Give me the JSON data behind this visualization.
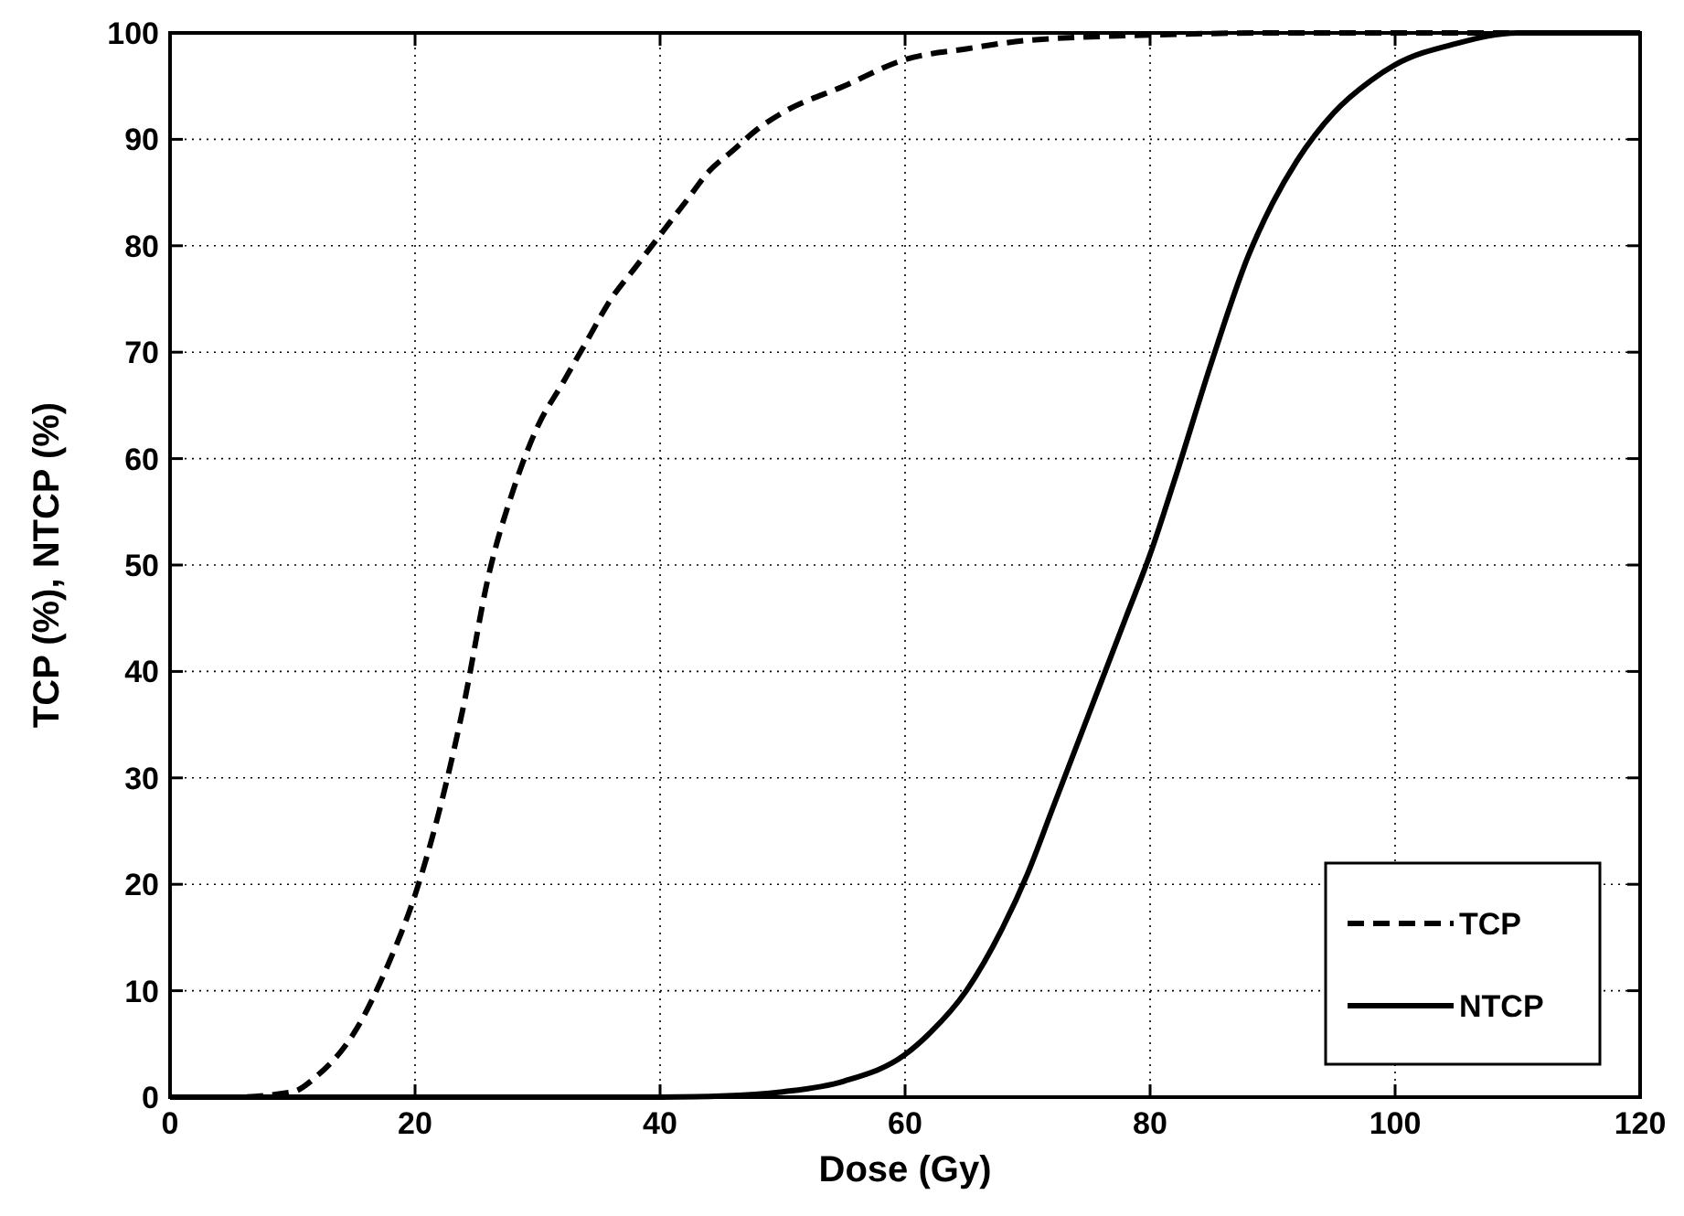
{
  "chart_data": {
    "type": "line",
    "xlabel": "Dose (Gy)",
    "ylabel": "TCP (%), NTCP (%)",
    "xlim": [
      0,
      120
    ],
    "ylim": [
      0,
      100
    ],
    "xticks": [
      0,
      20,
      40,
      60,
      80,
      100,
      120
    ],
    "yticks": [
      0,
      10,
      20,
      30,
      40,
      50,
      60,
      70,
      80,
      90,
      100
    ],
    "grid": true,
    "legend": "bottom right",
    "series": [
      {
        "name": "TCP",
        "color": "#000000",
        "line_style": "dashed",
        "x": [
          0,
          5,
          10,
          12,
          15,
          18,
          20,
          22,
          24,
          26,
          28,
          30,
          32,
          34,
          36,
          38,
          40,
          42,
          44,
          46,
          48,
          50,
          55,
          60,
          65,
          70,
          80,
          90,
          100,
          110,
          120
        ],
        "values": [
          0,
          0,
          0.5,
          2,
          6,
          13,
          19,
          27,
          37,
          49,
          57,
          63,
          67,
          71,
          75,
          78,
          81,
          84,
          87,
          89,
          91,
          92.5,
          95,
          97.5,
          98.5,
          99.3,
          99.8,
          100,
          100,
          100,
          100
        ]
      },
      {
        "name": "NTCP",
        "color": "#000000",
        "line_style": "solid",
        "x": [
          0,
          10,
          20,
          30,
          40,
          45,
          50,
          55,
          60,
          62,
          65,
          68,
          70,
          72,
          75,
          78,
          80,
          82,
          85,
          88,
          90,
          92,
          95,
          98,
          100,
          105,
          110,
          120
        ],
        "values": [
          0,
          0,
          0,
          0,
          0,
          0.1,
          0.5,
          1.5,
          4,
          6,
          10,
          16,
          21,
          27,
          36,
          45,
          51,
          58,
          69,
          79,
          84,
          88,
          92.5,
          95.5,
          97,
          99,
          100,
          100
        ]
      }
    ]
  }
}
